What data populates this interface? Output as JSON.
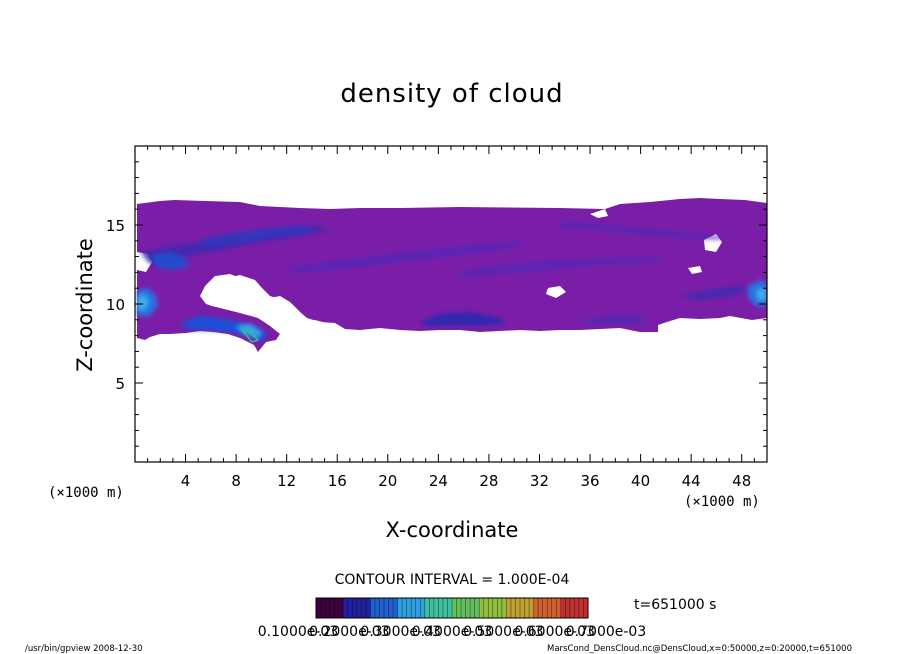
{
  "chart_data": {
    "type": "heatmap",
    "title": "density of cloud",
    "xlabel": "X-coordinate",
    "ylabel": "Z-coordinate",
    "x_unit": "(×1000 m)",
    "x_unit_right": "(×1000 m)",
    "xlim": [
      0,
      50
    ],
    "ylim": [
      0,
      20
    ],
    "xticks": [
      4,
      8,
      12,
      16,
      20,
      24,
      28,
      32,
      36,
      40,
      44,
      48
    ],
    "yticks": [
      5,
      10,
      15
    ],
    "grid": false,
    "contour_interval_label": "CONTOUR INTERVAL = 1.000E-04",
    "time_label": "t=651000 s",
    "colorbar": {
      "min": 0.0001,
      "max": 0.0007,
      "labels": [
        "0.1000e-03",
        "0.2000e-03",
        "0.3000e-03",
        "0.4000e-03",
        "0.5000e-03",
        "0.6000e-03",
        "0.7000e-03"
      ],
      "colors": [
        "#400040",
        "#2020a0",
        "#2060d0",
        "#30a0e0",
        "#40c0a0",
        "#60c060",
        "#90c040",
        "#c0a030",
        "#d06030",
        "#c03030"
      ]
    },
    "field": [
      {
        "x0": 0.0,
        "x1": 50.0,
        "z0": 15.0,
        "z1": 16.5,
        "level": 1
      },
      {
        "x0": 0.0,
        "x1": 50.0,
        "z0": 10.0,
        "z1": 15.0,
        "level": 1
      },
      {
        "x0": 0.0,
        "x1": 8.0,
        "z0": 7.8,
        "z1": 10.0,
        "level": 1
      },
      {
        "x0": 14.0,
        "x1": 50.0,
        "z0": 8.5,
        "z1": 10.0,
        "level": 1
      },
      {
        "x0": 1.5,
        "x1": 10.0,
        "z0": 12.5,
        "z1": 14.0,
        "level": 2
      },
      {
        "x0": 6.0,
        "x1": 13.0,
        "z0": 14.5,
        "z1": 15.2,
        "level": 2
      },
      {
        "x0": 0.0,
        "x1": 1.5,
        "z0": 9.5,
        "z1": 11.5,
        "level": 3
      },
      {
        "x0": 3.0,
        "x1": 10.0,
        "z0": 8.0,
        "z1": 9.5,
        "level": 3
      },
      {
        "x0": 48.5,
        "x1": 50.0,
        "z0": 10.0,
        "z1": 11.5,
        "level": 3
      },
      {
        "x0": 22.0,
        "x1": 28.0,
        "z0": 8.7,
        "z1": 9.2,
        "level": 2
      }
    ],
    "footer_left": "/usr/bin/gpview   2008-12-30",
    "footer_right": "MarsCond_DensCloud.nc@DensCloud,x=0:50000,z=0:20000,t=651000"
  }
}
